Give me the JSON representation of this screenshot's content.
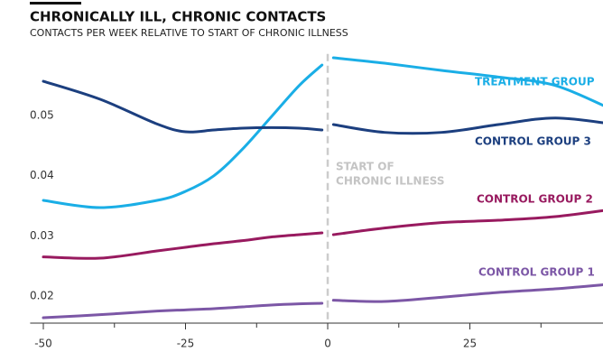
{
  "chart_data": {
    "type": "line",
    "title": "CHRONICALLY ILL, CHRONIC CONTACTS",
    "subtitle": "CONTACTS PER WEEK RELATIVE TO START OF CHRONIC ILLNESS",
    "x": [
      -50,
      -40,
      -30,
      -25,
      -20,
      -15,
      -10,
      -5,
      -1,
      0,
      1,
      10,
      20,
      30,
      40,
      50
    ],
    "series": [
      {
        "name": "TREATMENT GROUP",
        "color": "#1aaee6",
        "values": [
          0.0359,
          0.0347,
          0.0359,
          0.0374,
          0.04,
          0.0444,
          0.0497,
          0.055,
          0.0584,
          null,
          0.0596,
          0.0587,
          0.0575,
          0.0564,
          0.055,
          0.051
        ]
      },
      {
        "name": "CONTROL GROUP 3",
        "color": "#1c3f7f",
        "values": [
          0.0557,
          0.0527,
          0.0486,
          0.0473,
          0.0476,
          0.0479,
          0.048,
          0.0479,
          0.0476,
          null,
          0.0485,
          0.0472,
          0.0472,
          0.0485,
          0.0496,
          0.0486
        ]
      },
      {
        "name": "CONTROL GROUP 2",
        "color": "#981a5f",
        "values": [
          0.0265,
          0.0263,
          0.0275,
          0.0281,
          0.0287,
          0.0292,
          0.0298,
          0.0302,
          0.0305,
          null,
          0.0302,
          0.0313,
          0.0322,
          0.0326,
          0.0332,
          0.0344
        ]
      },
      {
        "name": "CONTROL GROUP 1",
        "color": "#7c57a6",
        "values": [
          0.0164,
          0.0169,
          0.0175,
          0.0177,
          0.0179,
          0.0182,
          0.0185,
          0.0187,
          0.0188,
          null,
          0.0193,
          0.0191,
          0.0198,
          0.0206,
          0.0212,
          0.022
        ]
      }
    ],
    "xlim": [
      -52,
      48.5
    ],
    "xticks": [
      -50,
      -25,
      0,
      25,
      50
    ],
    "xminorticks": [
      -37.5,
      -12.5,
      12.5,
      37.5
    ],
    "ylim": [
      0.0155,
      0.061
    ],
    "yticks": [
      0.02,
      0.03,
      0.04,
      0.05
    ],
    "annotation": {
      "x": 0,
      "lines": [
        "START OF",
        "CHRONIC ILLNESS"
      ]
    },
    "grid": false
  }
}
